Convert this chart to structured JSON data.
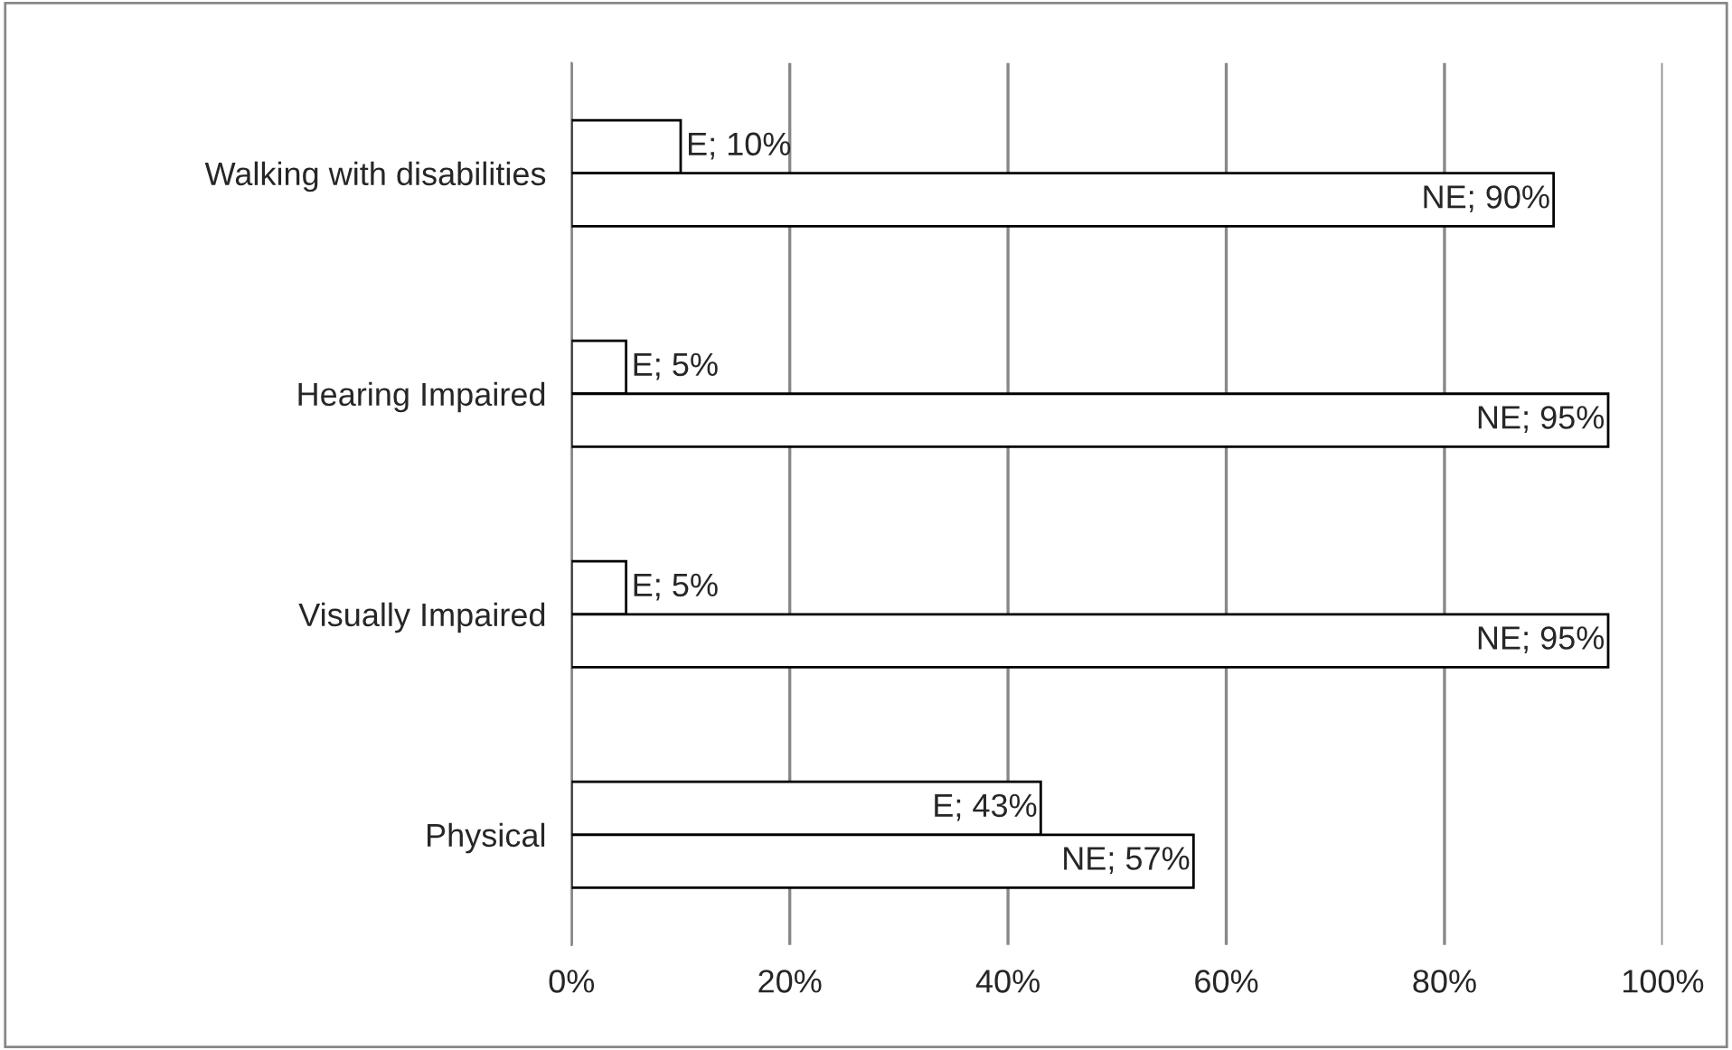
{
  "chart_data": {
    "type": "bar",
    "orientation": "horizontal",
    "categories": [
      "Walking with disabilities",
      "Hearing Impaired",
      "Visually Impaired",
      "Physical"
    ],
    "series": [
      {
        "color": "#ffffff",
        "values": [
          10,
          5,
          5,
          43
        ],
        "value_labels": [
          "E; 10%",
          "E; 5%",
          "E; 5%",
          "E; 43%"
        ]
      },
      {
        "color": "#ffffff",
        "values": [
          90,
          95,
          95,
          57
        ],
        "value_labels": [
          "NE; 90%",
          "NE; 95%",
          "NE; 95%",
          "NE; 57%"
        ]
      }
    ],
    "xlim": [
      0,
      100
    ],
    "xticks": [
      {
        "value": 0,
        "label": "0%"
      },
      {
        "value": 20,
        "label": "20%"
      },
      {
        "value": 40,
        "label": "40%"
      },
      {
        "value": 60,
        "label": "60%"
      },
      {
        "value": 80,
        "label": "80%"
      },
      {
        "value": 100,
        "label": "100%"
      }
    ],
    "grid": "x",
    "legend": false
  }
}
